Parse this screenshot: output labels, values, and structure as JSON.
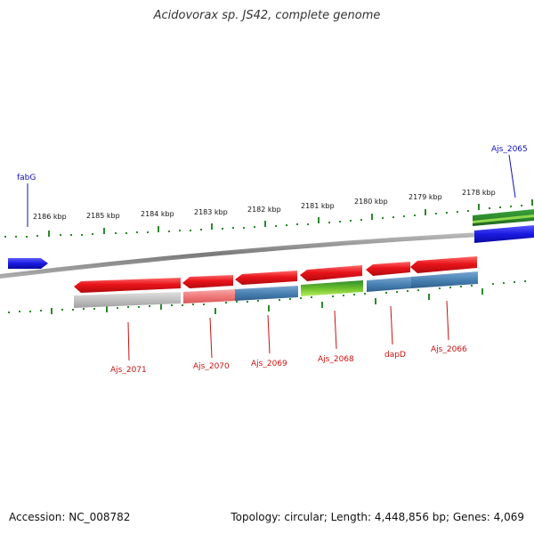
{
  "title": "Acidovorax sp. JS42, complete genome",
  "footer": {
    "accession": "Accession: NC_008782",
    "summary": "Topology: circular; Length: 4,448,856 bp; Genes: 4,069"
  },
  "colors": {
    "gene_red": "#e8141a",
    "gene_red_light": "#f07a7a",
    "gene_blue": "#1a1ae0",
    "cds_steel": "#4a82b4",
    "cds_green": "#7ec832",
    "cds_dark_green": "#2e8b2e",
    "pseudo_gray": "#c0c0c0",
    "tick_green": "#2a8a2a",
    "backbone": "#8a8a8a",
    "label_red": "#cc1010",
    "label_blue": "#1010bb"
  },
  "scale": {
    "labels": [
      "2186 kbp",
      "2185 kbp",
      "2184 kbp",
      "2183 kbp",
      "2182 kbp",
      "2181 kbp",
      "2180 kbp",
      "2179 kbp",
      "2178 kbp"
    ]
  },
  "genes": [
    {
      "name": "fabG",
      "strand": "forward",
      "color": "blue"
    },
    {
      "name": "Ajs_2065",
      "strand": "reverse",
      "color": "blue"
    },
    {
      "name": "Ajs_2071",
      "strand": "reverse",
      "color": "red"
    },
    {
      "name": "Ajs_2070",
      "strand": "reverse",
      "color": "red"
    },
    {
      "name": "Ajs_2069",
      "strand": "reverse",
      "color": "red"
    },
    {
      "name": "Ajs_2068",
      "strand": "reverse",
      "color": "red"
    },
    {
      "name": "dapD",
      "strand": "reverse",
      "color": "red"
    },
    {
      "name": "Ajs_2066",
      "strand": "reverse",
      "color": "red"
    }
  ]
}
